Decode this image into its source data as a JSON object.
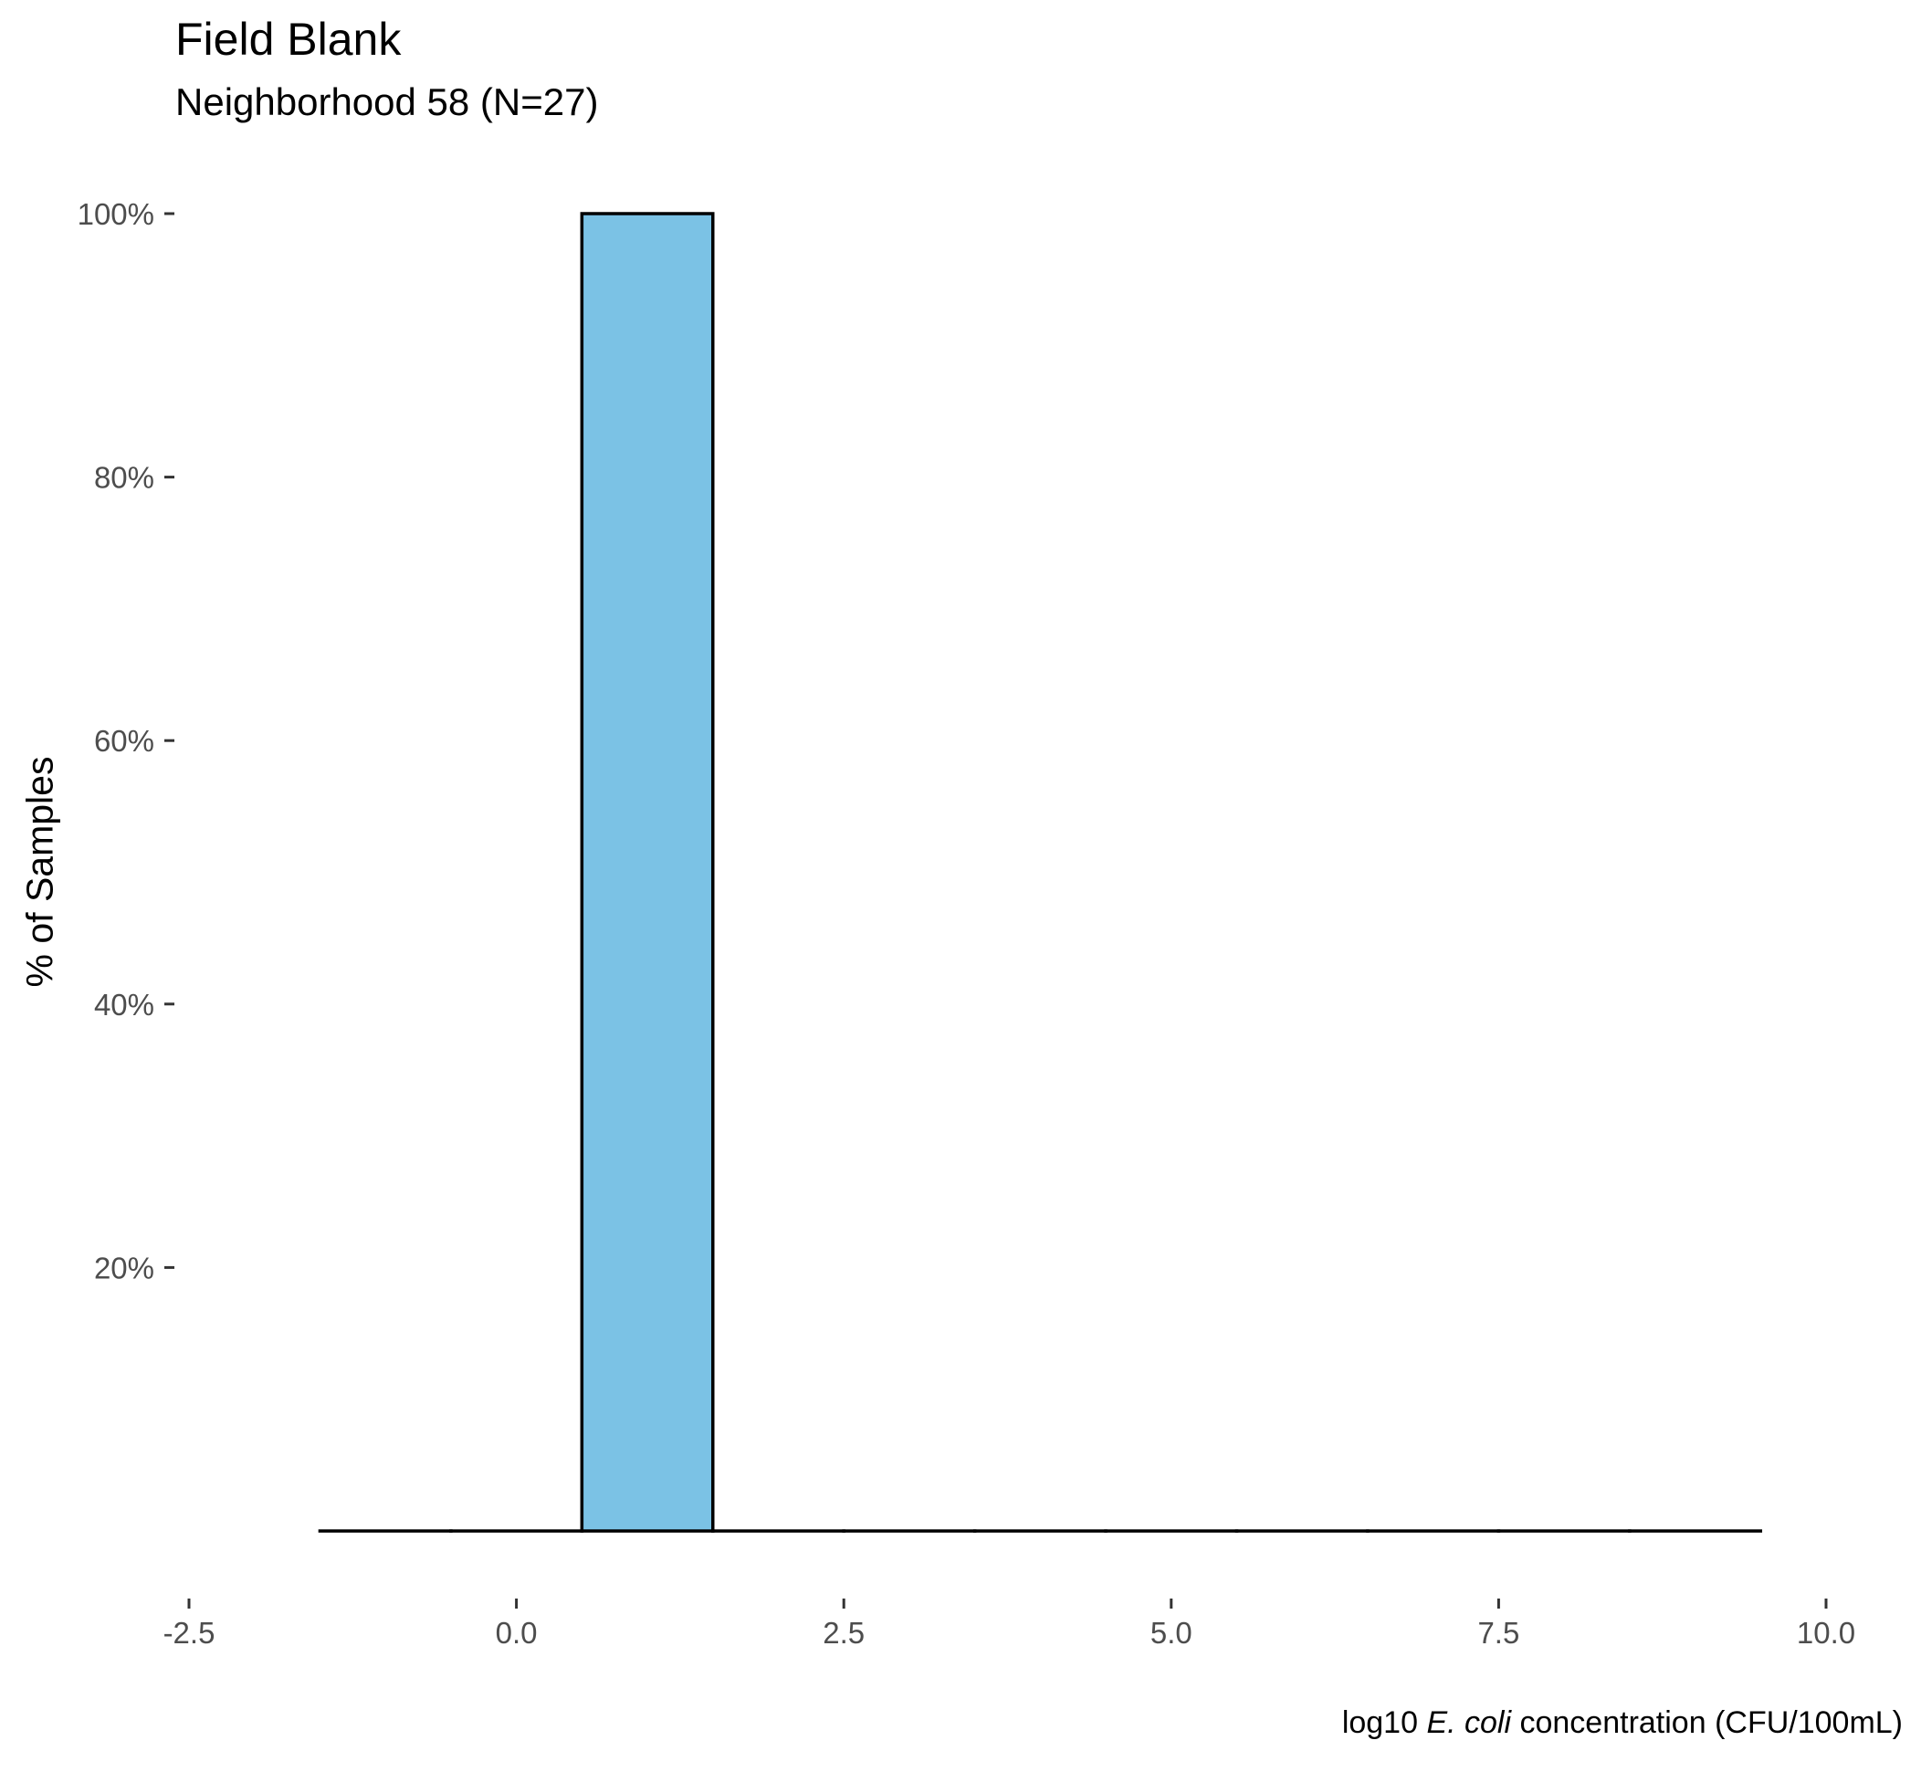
{
  "chart_data": {
    "type": "bar",
    "title": "Field Blank",
    "subtitle": "Neighborhood 58 (N=27)",
    "ylabel": "% of Samples",
    "xlabel": {
      "prefix": "log10 ",
      "italic": "E. coli",
      "suffix": " concentration (CFU/100mL)"
    },
    "bins": [
      {
        "x0": -1.5,
        "x1": -0.5,
        "value": 0
      },
      {
        "x0": -0.5,
        "x1": 0.5,
        "value": 0
      },
      {
        "x0": 0.5,
        "x1": 1.5,
        "value": 100
      },
      {
        "x0": 1.5,
        "x1": 2.5,
        "value": 0
      },
      {
        "x0": 2.5,
        "x1": 3.5,
        "value": 0
      },
      {
        "x0": 3.5,
        "x1": 4.5,
        "value": 0
      },
      {
        "x0": 4.5,
        "x1": 5.5,
        "value": 0
      },
      {
        "x0": 5.5,
        "x1": 6.5,
        "value": 0
      },
      {
        "x0": 6.5,
        "x1": 7.5,
        "value": 0
      },
      {
        "x0": 7.5,
        "x1": 8.5,
        "value": 0
      },
      {
        "x0": 8.5,
        "x1": 9.5,
        "value": 0
      }
    ],
    "xlim": [
      -2.5,
      10.0
    ],
    "ylim": [
      0,
      100
    ],
    "x_ticks": [
      {
        "value": -2.5,
        "label": "-2.5"
      },
      {
        "value": 0.0,
        "label": "0.0"
      },
      {
        "value": 2.5,
        "label": "2.5"
      },
      {
        "value": 5.0,
        "label": "5.0"
      },
      {
        "value": 7.5,
        "label": "7.5"
      },
      {
        "value": 10.0,
        "label": "10.0"
      }
    ],
    "y_ticks": [
      {
        "value": 20,
        "label": "20%"
      },
      {
        "value": 40,
        "label": "40%"
      },
      {
        "value": 60,
        "label": "60%"
      },
      {
        "value": 80,
        "label": "80%"
      },
      {
        "value": 100,
        "label": "100%"
      }
    ],
    "grid": false,
    "colors": {
      "fill": "#7BC2E5",
      "outline": "#000000"
    }
  }
}
